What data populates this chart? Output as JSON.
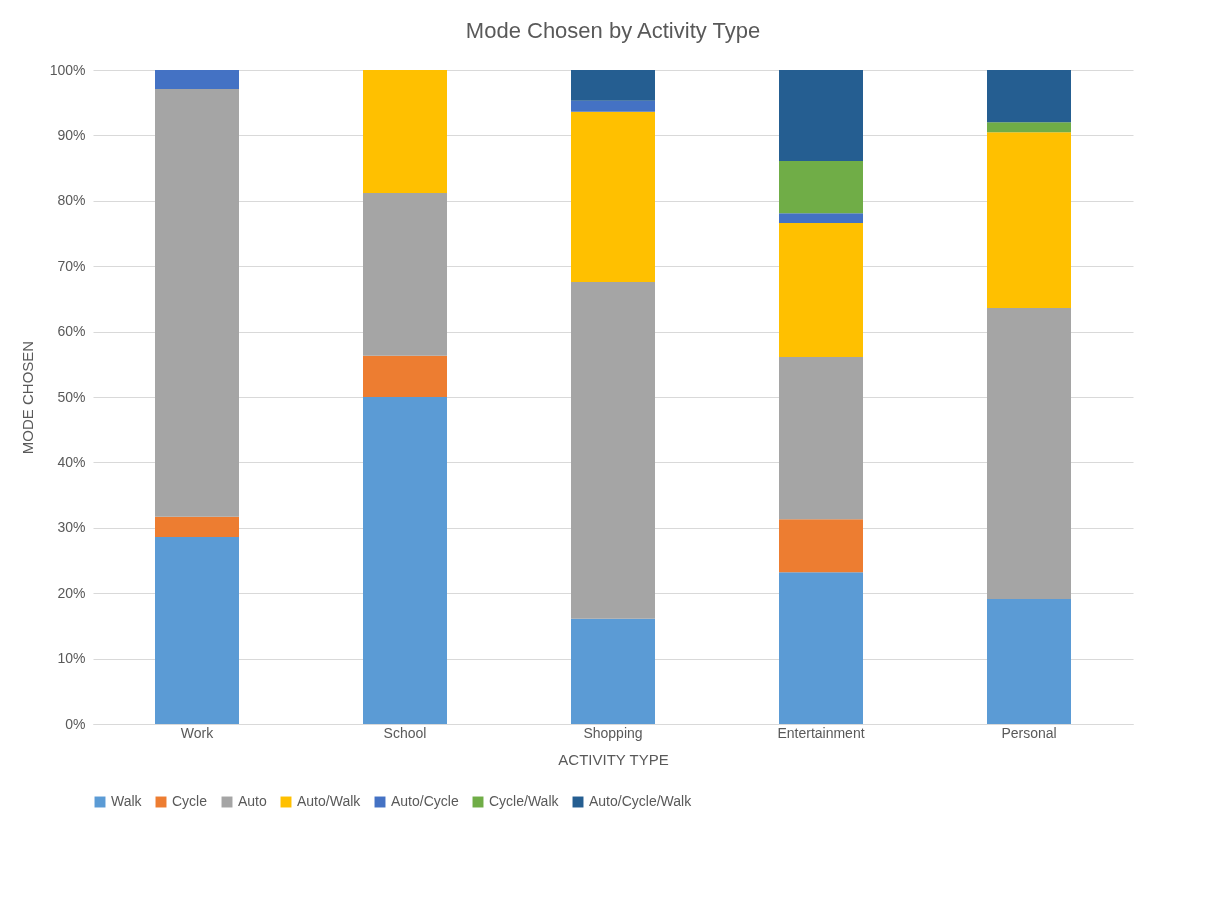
{
  "chart_data": {
    "type": "bar",
    "title": "Mode Chosen by Activity Type",
    "xlabel": "ACTIVITY TYPE",
    "ylabel": "MODE CHOSEN",
    "stacked": true,
    "categories": [
      "Work",
      "School",
      "Shopping",
      "Entertainment",
      "Personal"
    ],
    "series": [
      {
        "name": "Walk",
        "color": "#5b9bd5",
        "values": [
          28.6,
          50,
          16.1,
          23.2,
          19.1
        ]
      },
      {
        "name": "Cycle",
        "color": "#ed7d31",
        "values": [
          3.1,
          6.3,
          null,
          8.1,
          null
        ]
      },
      {
        "name": "Auto",
        "color": "#a5a5a5",
        "values": [
          65.4,
          24.9,
          51.5,
          24.8,
          44.5
        ]
      },
      {
        "name": "Auto/Walk",
        "color": "#ffc000",
        "values": [
          null,
          18.8,
          26,
          20.5,
          26.9
        ]
      },
      {
        "name": "Auto/Cycle",
        "color": "#4472c4",
        "values": [
          2.9,
          null,
          1.7,
          1.5,
          null
        ]
      },
      {
        "name": "Cycle/Walk",
        "color": "#70ad47",
        "values": [
          null,
          null,
          null,
          8,
          1.5
        ]
      },
      {
        "name": "Auto/Cycle/Walk",
        "color": "#255e91",
        "values": [
          null,
          null,
          4.7,
          13.9,
          8
        ]
      }
    ],
    "ylim": [
      0,
      100
    ],
    "yticks": [
      {
        "value": 0,
        "label": "0%"
      },
      {
        "value": 10,
        "label": "10%"
      },
      {
        "value": 20,
        "label": "20%"
      },
      {
        "value": 30,
        "label": "30%"
      },
      {
        "value": 40,
        "label": "40%"
      },
      {
        "value": 50,
        "label": "50%"
      },
      {
        "value": 60,
        "label": "60%"
      },
      {
        "value": 70,
        "label": "70%"
      },
      {
        "value": 80,
        "label": "80%"
      },
      {
        "value": 90,
        "label": "90%"
      },
      {
        "value": 100,
        "label": "100%"
      }
    ],
    "grid": "y",
    "legend": "bottom"
  }
}
